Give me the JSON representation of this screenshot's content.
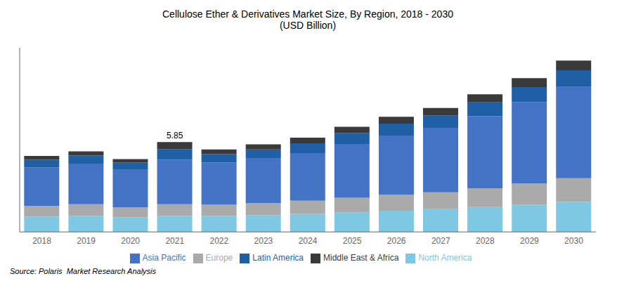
{
  "chart_data": {
    "type": "bar",
    "stacked": true,
    "title": "Cellulose Ether & Derivatives Market Size, By Region, 2018 - 2030",
    "subtitle": "(USD Billion)",
    "categories": [
      "2018",
      "2019",
      "2020",
      "2021",
      "2022",
      "2023",
      "2024",
      "2025",
      "2026",
      "2027",
      "2028",
      "2029",
      "2030"
    ],
    "series": [
      {
        "name": "North America",
        "color": "#7EC8E3",
        "values": [
          1.0,
          1.05,
          0.95,
          1.05,
          1.05,
          1.1,
          1.18,
          1.28,
          1.38,
          1.48,
          1.62,
          1.78,
          1.95
        ]
      },
      {
        "name": "Europe",
        "color": "#AAAAAA",
        "values": [
          0.7,
          0.75,
          0.65,
          0.75,
          0.72,
          0.78,
          0.85,
          0.95,
          1.05,
          1.1,
          1.22,
          1.38,
          1.55
        ]
      },
      {
        "name": "Asia Pacific",
        "color": "#4472C4",
        "values": [
          2.5,
          2.65,
          2.45,
          2.9,
          2.75,
          2.9,
          3.1,
          3.5,
          3.85,
          4.2,
          4.7,
          5.3,
          5.95
        ]
      },
      {
        "name": "Latin America",
        "color": "#1F5FA6",
        "values": [
          0.5,
          0.52,
          0.48,
          0.7,
          0.55,
          0.6,
          0.65,
          0.72,
          0.78,
          0.82,
          0.9,
          0.98,
          1.08
        ]
      },
      {
        "name": "Middle East & Africa",
        "color": "#3A3A3A",
        "values": [
          0.25,
          0.28,
          0.22,
          0.45,
          0.3,
          0.33,
          0.36,
          0.4,
          0.44,
          0.48,
          0.53,
          0.58,
          0.64
        ]
      }
    ],
    "annotations": [
      {
        "text": "5.85",
        "category": "2021",
        "value": 5.85
      }
    ],
    "source": "Source: Polaris  Market Research Analysis",
    "ylim": [
      0,
      12.0
    ],
    "tick_labels": "x",
    "grid": false,
    "legend": "bottom"
  }
}
